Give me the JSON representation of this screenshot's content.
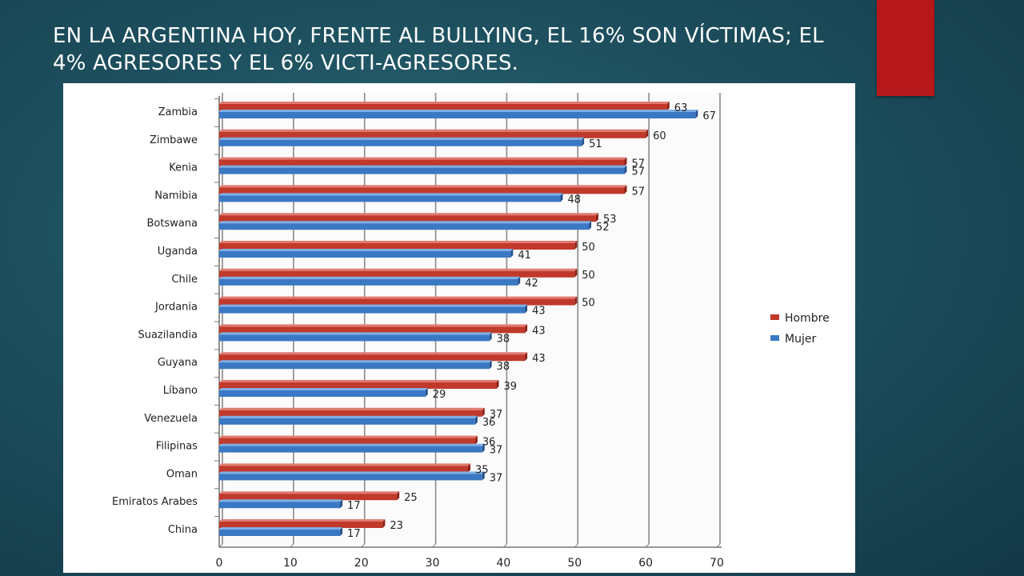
{
  "slide": {
    "title": "EN LA ARGENTINA HOY, FRENTE AL BULLYING, EL 16% SON VÍCTIMAS; EL 4% AGRESORES Y EL 6% VICTI-AGRESORES.",
    "accent_color": "#b5171b"
  },
  "chart_data": {
    "type": "bar",
    "orientation": "horizontal",
    "categories": [
      "Zambia",
      "Zimbawe",
      "Kenia",
      "Namibia",
      "Botswana",
      "Uganda",
      "Chile",
      "Jordania",
      "Suazilandia",
      "Guyana",
      "Líbano",
      "Venezuela",
      "Filipinas",
      "Oman",
      "Emiratos Arabes",
      "China"
    ],
    "series": [
      {
        "name": "Hombre",
        "color": "#c0392b",
        "values": [
          63,
          60,
          57,
          57,
          53,
          50,
          50,
          50,
          43,
          43,
          39,
          37,
          36,
          35,
          25,
          23
        ]
      },
      {
        "name": "Mujer",
        "color": "#3b78c4",
        "values": [
          67,
          51,
          57,
          48,
          52,
          41,
          42,
          43,
          38,
          38,
          29,
          36,
          37,
          37,
          17,
          17
        ]
      }
    ],
    "xlim": [
      0,
      70
    ],
    "xticks": [
      "0",
      "10",
      "20",
      "30",
      "40",
      "50",
      "60",
      "70"
    ],
    "grid": true,
    "legend": "right"
  }
}
